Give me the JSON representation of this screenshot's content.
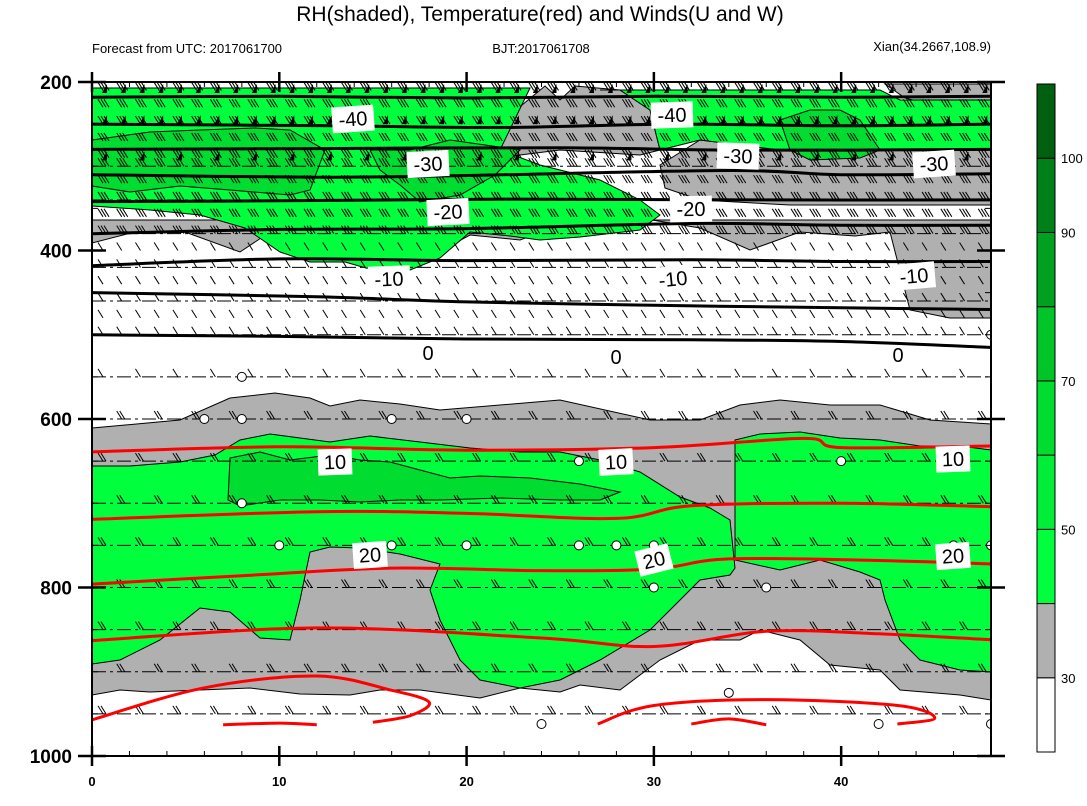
{
  "chart_data": {
    "type": "heatmap",
    "title": "RH(shaded), Temperature(red) and Winds(U and W)",
    "subtitle_left": "Forecast from UTC: 2017061700",
    "subtitle_center": "BJT:2017061708",
    "subtitle_right": "Xian(34.2667,108.9)",
    "x_ticks": [
      "0",
      "10",
      "20",
      "30",
      "40"
    ],
    "x_range": [
      0,
      48
    ],
    "y_ticks": [
      "200",
      "400",
      "600",
      "800",
      "1000"
    ],
    "y_range": [
      200,
      1000
    ],
    "y_inverted": true,
    "colorbar": {
      "ticks": [
        "30",
        "50",
        "70",
        "90",
        "100"
      ],
      "levels": [
        30,
        40,
        50,
        60,
        70,
        80,
        90,
        95,
        100
      ],
      "colors": [
        "#ffffff",
        "#b0b0b0",
        "#00ff3c",
        "#00ee38",
        "#00dd30",
        "#00c428",
        "#00a020",
        "#008018",
        "#006010"
      ]
    },
    "shading_colors": {
      "gray": "#b0b0b0",
      "light_green": "#00ff3c",
      "mid_green": "#00dd30",
      "dark_green": "#00b828"
    },
    "temperature_labels_black": [
      "-40",
      "-40",
      "-30",
      "-30",
      "-30",
      "-20",
      "-20",
      "-10",
      "-10",
      "-10"
    ],
    "temperature_labels_zero": [
      "0",
      "0",
      "0"
    ],
    "temperature_labels_red": [
      "10",
      "10",
      "10",
      "20",
      "20",
      "20"
    ],
    "black_contours": [
      {
        "level": -45,
        "p": [
          [
            0,
            218
          ],
          [
            10,
            217
          ],
          [
            20,
            219
          ],
          [
            30,
            217
          ],
          [
            40,
            218
          ],
          [
            48,
            217
          ]
        ]
      },
      {
        "level": -40,
        "p": [
          [
            0,
            250
          ],
          [
            13,
            252
          ],
          [
            22,
            254
          ],
          [
            31,
            250
          ],
          [
            40,
            252
          ],
          [
            48,
            250
          ]
        ]
      },
      {
        "level": -35,
        "p": [
          [
            0,
            280
          ],
          [
            12,
            279
          ],
          [
            25,
            278
          ],
          [
            35,
            281
          ],
          [
            48,
            280
          ]
        ]
      },
      {
        "level": -30,
        "p": [
          [
            0,
            310
          ],
          [
            12,
            313
          ],
          [
            20,
            311
          ],
          [
            34,
            305
          ],
          [
            40,
            310
          ],
          [
            48,
            309
          ]
        ]
      },
      {
        "level": -25,
        "p": [
          [
            0,
            342
          ],
          [
            10,
            341
          ],
          [
            22,
            339
          ],
          [
            35,
            340
          ],
          [
            48,
            340
          ]
        ]
      },
      {
        "level": -20,
        "p": [
          [
            0,
            380
          ],
          [
            10,
            375
          ],
          [
            20,
            374
          ],
          [
            32,
            368
          ],
          [
            40,
            370
          ],
          [
            48,
            370
          ]
        ]
      },
      {
        "level": -15,
        "p": [
          [
            0,
            418
          ],
          [
            10,
            410
          ],
          [
            20,
            412
          ],
          [
            32,
            411
          ],
          [
            40,
            413
          ],
          [
            48,
            413
          ]
        ]
      },
      {
        "level": -10,
        "p": [
          [
            0,
            450
          ],
          [
            12,
            455
          ],
          [
            20,
            461
          ],
          [
            30,
            465
          ],
          [
            40,
            468
          ],
          [
            48,
            470
          ]
        ]
      },
      {
        "level": -5,
        "p": [
          [
            0,
            500
          ],
          [
            10,
            502
          ],
          [
            20,
            505
          ],
          [
            32,
            506
          ],
          [
            40,
            508
          ],
          [
            48,
            515
          ]
        ]
      }
    ],
    "red_contours": [
      {
        "level": 5,
        "p": [
          [
            0,
            639
          ],
          [
            10,
            633
          ],
          [
            20,
            637
          ],
          [
            30,
            634
          ],
          [
            38,
            623
          ],
          [
            40,
            634
          ],
          [
            48,
            632
          ]
        ]
      },
      {
        "level": 10,
        "p": [
          [
            0,
            719
          ],
          [
            12,
            710
          ],
          [
            20,
            712
          ],
          [
            28,
            718
          ],
          [
            32,
            703
          ],
          [
            40,
            700
          ],
          [
            48,
            704
          ]
        ]
      },
      {
        "level": 15,
        "p": [
          [
            0,
            796
          ],
          [
            8,
            786
          ],
          [
            16,
            777
          ],
          [
            24,
            780
          ],
          [
            30,
            778
          ],
          [
            34,
            766
          ],
          [
            42,
            768
          ],
          [
            48,
            772
          ]
        ]
      },
      {
        "level": 20,
        "p": [
          [
            0,
            863
          ],
          [
            12,
            848
          ],
          [
            24,
            860
          ],
          [
            30,
            870
          ],
          [
            36,
            852
          ],
          [
            42,
            855
          ],
          [
            48,
            862
          ]
        ]
      },
      {
        "level": 25,
        "p": [
          [
            0,
            957
          ],
          [
            6,
            919
          ],
          [
            12,
            905
          ],
          [
            16,
            922
          ],
          [
            18,
            936
          ],
          [
            17,
            952
          ],
          [
            15,
            960
          ]
        ]
      },
      {
        "level": 25,
        "p": [
          [
            27,
            962
          ],
          [
            30,
            940
          ],
          [
            36,
            933
          ],
          [
            43,
            940
          ],
          [
            45,
            955
          ],
          [
            43,
            962
          ]
        ]
      },
      {
        "level": 30,
        "p": [
          [
            7,
            963
          ],
          [
            10,
            961
          ],
          [
            12,
            963
          ]
        ]
      },
      {
        "level": 30,
        "p": [
          [
            32,
            962
          ],
          [
            34,
            956
          ],
          [
            36,
            963
          ]
        ]
      }
    ],
    "dashed_levels": [
      300,
      340,
      380,
      420,
      460,
      500,
      550,
      600,
      650,
      700,
      750,
      800,
      850,
      900,
      950
    ],
    "circles": [
      [
        8,
        550
      ],
      [
        6,
        600
      ],
      [
        8,
        600
      ],
      [
        16,
        600
      ],
      [
        20,
        600
      ],
      [
        26,
        650
      ],
      [
        40,
        650
      ],
      [
        8,
        700
      ],
      [
        10,
        750
      ],
      [
        16,
        750
      ],
      [
        20,
        750
      ],
      [
        26,
        750
      ],
      [
        28,
        750
      ],
      [
        30,
        750
      ],
      [
        46,
        750
      ],
      [
        48,
        750
      ],
      [
        30,
        800
      ],
      [
        36,
        800
      ],
      [
        34,
        925
      ],
      [
        24,
        962
      ],
      [
        42,
        962
      ],
      [
        48,
        962
      ],
      [
        48,
        500
      ]
    ]
  }
}
